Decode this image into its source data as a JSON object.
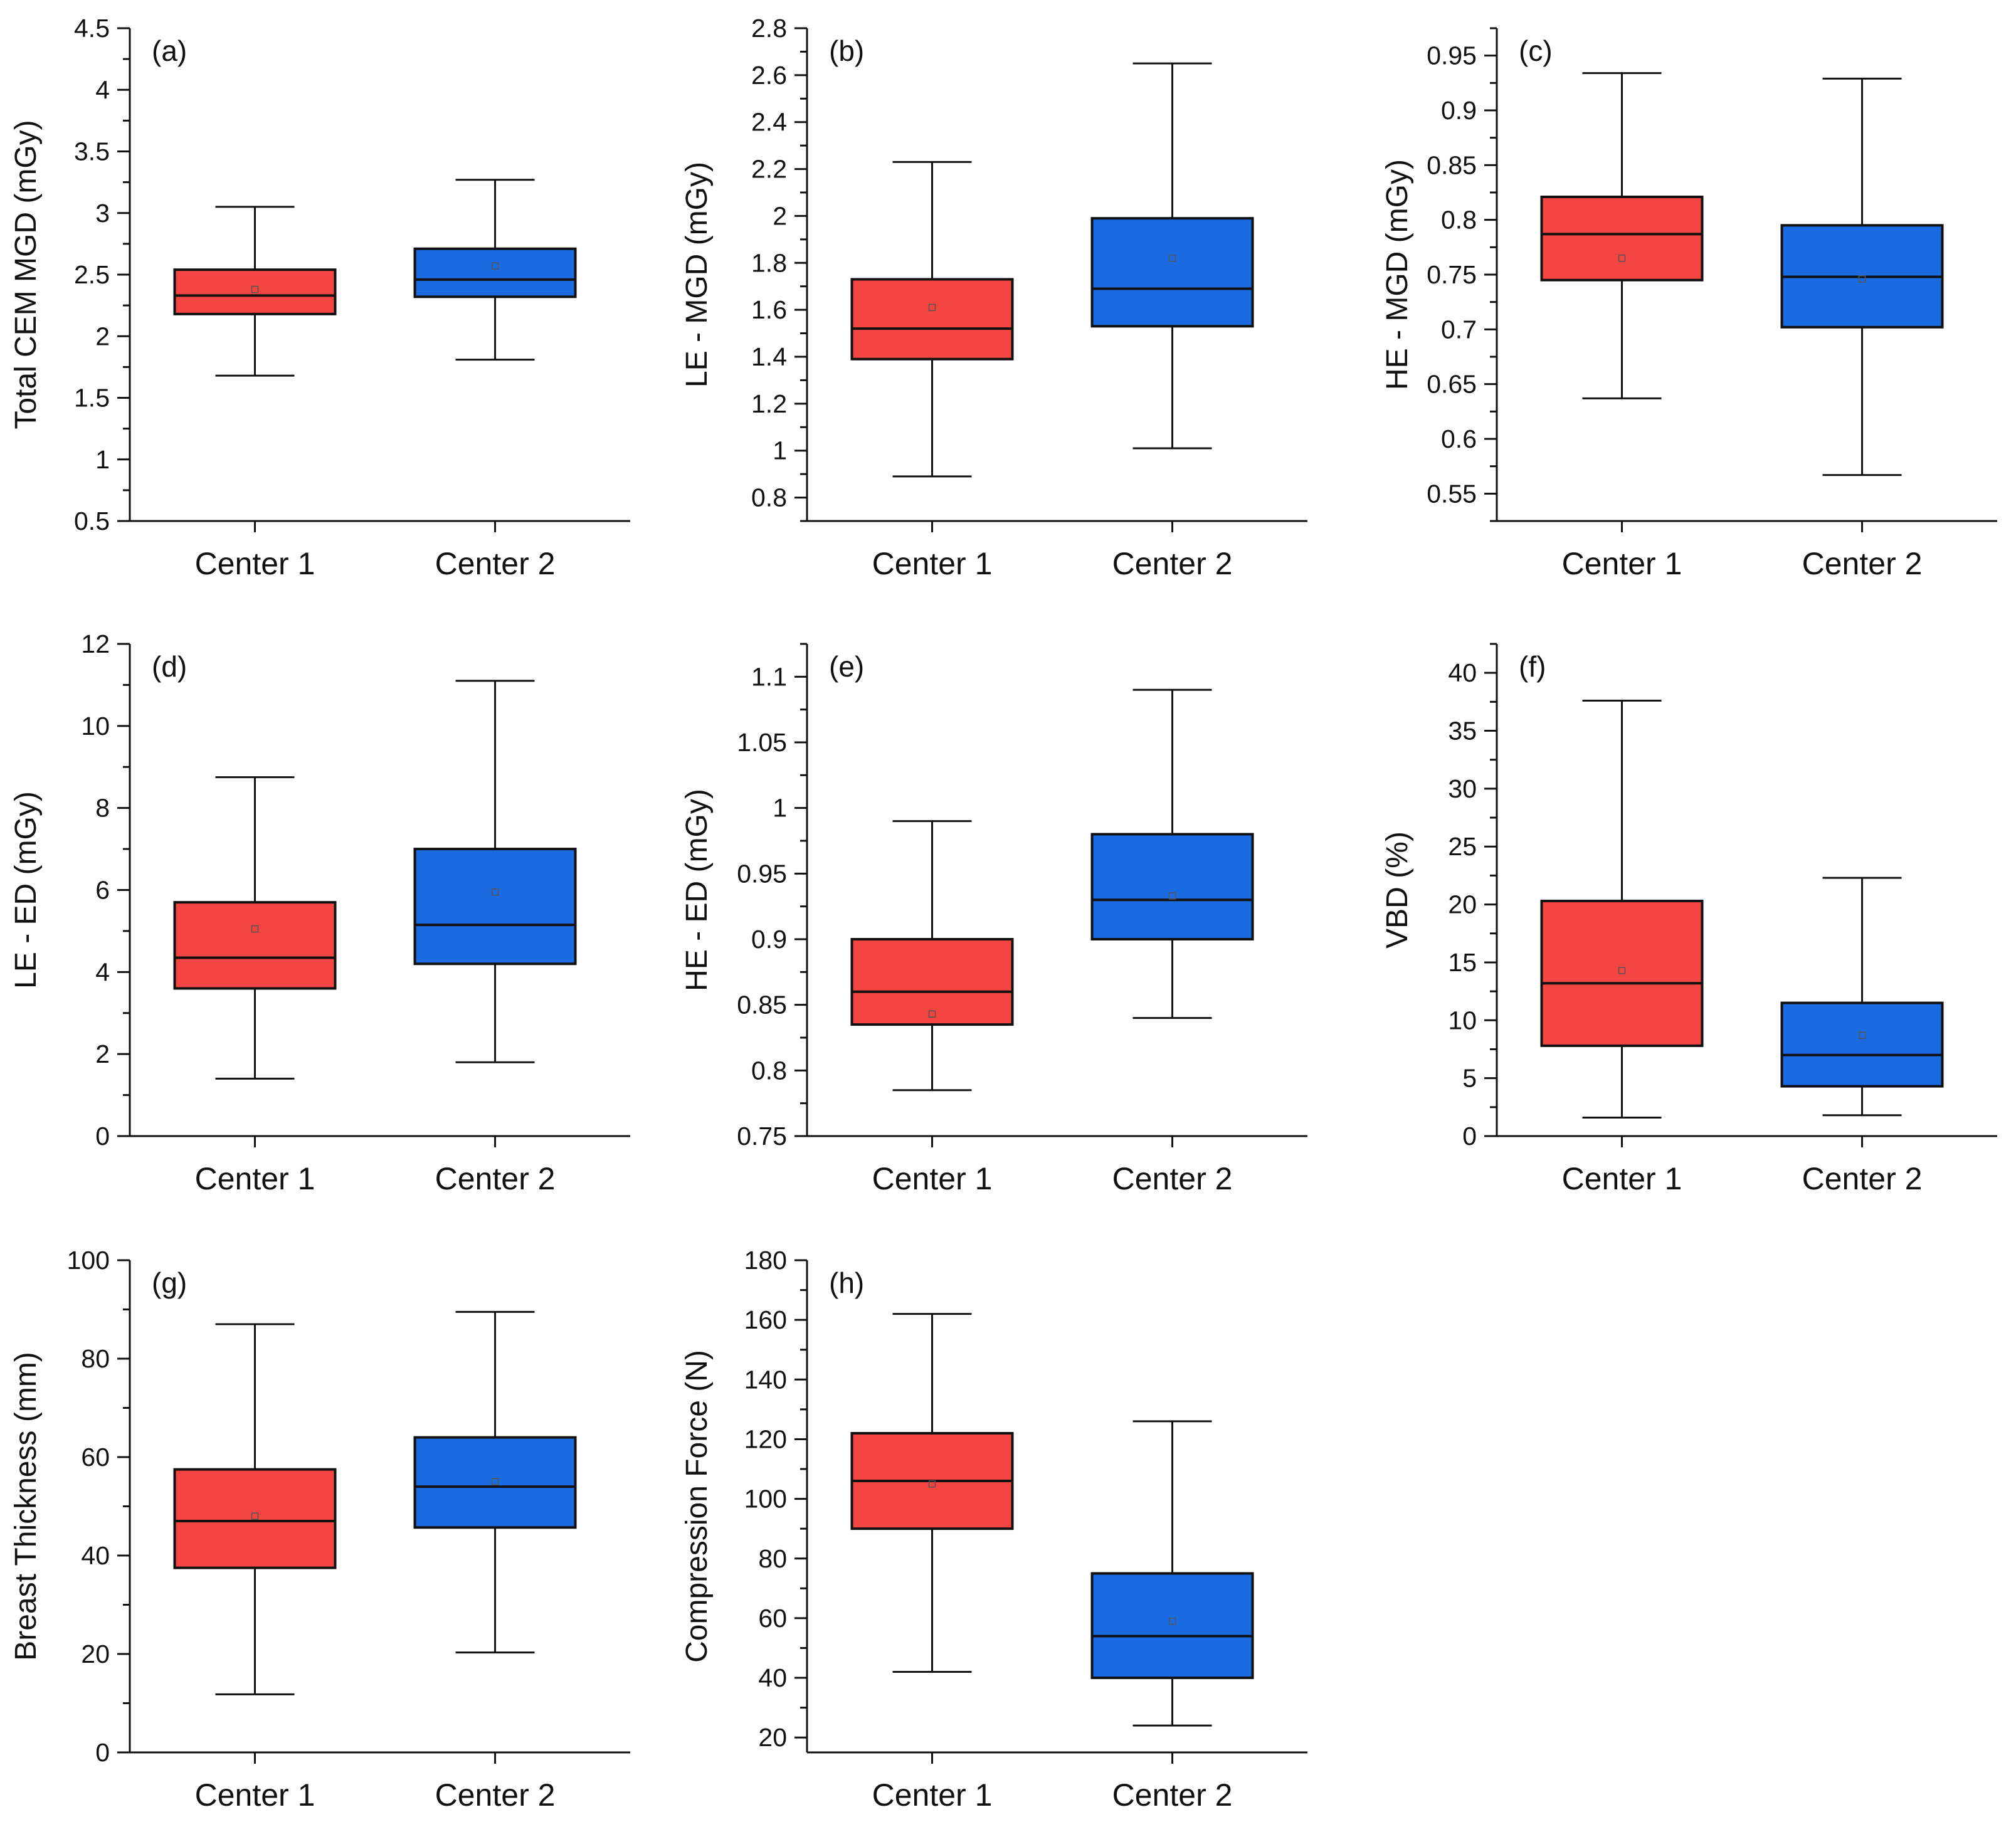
{
  "figure": {
    "colors": {
      "Center 1": "#f44542",
      "Center 2": "#1a6ae2",
      "axis": "#111111"
    }
  },
  "chart_data": [
    {
      "type": "box",
      "label": "(a)",
      "ylabel": "Total CEM MGD (mGy)",
      "ylim": [
        0.5,
        4.5
      ],
      "yticks": [
        "0.5",
        "1",
        "1.5",
        "2",
        "2.5",
        "3",
        "3.5",
        "4",
        "4.5"
      ],
      "categories": [
        "Center 1",
        "Center 2"
      ],
      "boxes": [
        {
          "name": "Center 1",
          "min": 1.68,
          "q1": 2.18,
          "median": 2.33,
          "q3": 2.54,
          "max": 3.05,
          "mean": 2.38
        },
        {
          "name": "Center 2",
          "min": 1.81,
          "q1": 2.32,
          "median": 2.46,
          "q3": 2.71,
          "max": 3.27,
          "mean": 2.57
        }
      ]
    },
    {
      "type": "box",
      "label": "(b)",
      "ylabel": "LE - MGD (mGy)",
      "ylim": [
        0.7,
        2.8
      ],
      "yticks": [
        "0.8",
        "1",
        "1.2",
        "1.4",
        "1.6",
        "1.8",
        "2",
        "2.2",
        "2.4",
        "2.6",
        "2.8"
      ],
      "categories": [
        "Center 1",
        "Center 2"
      ],
      "boxes": [
        {
          "name": "Center 1",
          "min": 0.89,
          "q1": 1.39,
          "median": 1.52,
          "q3": 1.73,
          "max": 2.23,
          "mean": 1.61
        },
        {
          "name": "Center 2",
          "min": 1.01,
          "q1": 1.53,
          "median": 1.69,
          "q3": 1.99,
          "max": 2.65,
          "mean": 1.82
        }
      ]
    },
    {
      "type": "box",
      "label": "(c)",
      "ylabel": "HE - MGD (mGy)",
      "ylim": [
        0.525,
        0.975
      ],
      "yticks": [
        "0.55",
        "0.6",
        "0.65",
        "0.7",
        "0.75",
        "0.8",
        "0.85",
        "0.9",
        "0.95"
      ],
      "categories": [
        "Center 1",
        "Center 2"
      ],
      "boxes": [
        {
          "name": "Center 1",
          "min": 0.637,
          "q1": 0.745,
          "median": 0.787,
          "q3": 0.821,
          "max": 0.934,
          "mean": 0.765
        },
        {
          "name": "Center 2",
          "min": 0.567,
          "q1": 0.702,
          "median": 0.748,
          "q3": 0.795,
          "max": 0.929,
          "mean": 0.746
        }
      ]
    },
    {
      "type": "box",
      "label": "(d)",
      "ylabel": "LE - ED (mGy)",
      "ylim": [
        0,
        12
      ],
      "yticks": [
        "0",
        "2",
        "4",
        "6",
        "8",
        "10",
        "12"
      ],
      "categories": [
        "Center 1",
        "Center 2"
      ],
      "boxes": [
        {
          "name": "Center 1",
          "min": 1.4,
          "q1": 3.6,
          "median": 4.35,
          "q3": 5.7,
          "max": 8.75,
          "mean": 5.05
        },
        {
          "name": "Center 2",
          "min": 1.8,
          "q1": 4.2,
          "median": 5.15,
          "q3": 7.0,
          "max": 11.1,
          "mean": 5.95
        }
      ]
    },
    {
      "type": "box",
      "label": "(e)",
      "ylabel": "HE - ED (mGy)",
      "ylim": [
        0.75,
        1.125
      ],
      "yticks": [
        "0.75",
        "0.8",
        "0.85",
        "0.9",
        "0.95",
        "1",
        "1.05",
        "1.1"
      ],
      "categories": [
        "Center 1",
        "Center 2"
      ],
      "boxes": [
        {
          "name": "Center 1",
          "min": 0.785,
          "q1": 0.835,
          "median": 0.86,
          "q3": 0.9,
          "max": 0.99,
          "mean": 0.843
        },
        {
          "name": "Center 2",
          "min": 0.84,
          "q1": 0.9,
          "median": 0.93,
          "q3": 0.98,
          "max": 1.09,
          "mean": 0.933
        }
      ]
    },
    {
      "type": "box",
      "label": "(f)",
      "ylabel": "VBD (%)",
      "ylim": [
        0,
        42.5
      ],
      "yticks": [
        "0",
        "5",
        "10",
        "15",
        "20",
        "25",
        "30",
        "35",
        "40"
      ],
      "categories": [
        "Center 1",
        "Center 2"
      ],
      "boxes": [
        {
          "name": "Center 1",
          "min": 1.6,
          "q1": 7.8,
          "median": 13.2,
          "q3": 20.3,
          "max": 37.6,
          "mean": 14.3
        },
        {
          "name": "Center 2",
          "min": 1.8,
          "q1": 4.3,
          "median": 7.0,
          "q3": 11.5,
          "max": 22.3,
          "mean": 8.7
        }
      ]
    },
    {
      "type": "box",
      "label": "(g)",
      "ylabel": "Breast Thickness (mm)",
      "ylim": [
        0,
        100
      ],
      "yticks": [
        "0",
        "20",
        "40",
        "60",
        "80",
        "100"
      ],
      "categories": [
        "Center 1",
        "Center 2"
      ],
      "boxes": [
        {
          "name": "Center 1",
          "min": 11.8,
          "q1": 37.5,
          "median": 47.0,
          "q3": 57.5,
          "max": 87.0,
          "mean": 48.0
        },
        {
          "name": "Center 2",
          "min": 20.3,
          "q1": 45.7,
          "median": 54.0,
          "q3": 64.0,
          "max": 89.5,
          "mean": 55.0
        }
      ]
    },
    {
      "type": "box",
      "label": "(h)",
      "ylabel": "Compression Force (N)",
      "ylim": [
        15,
        180
      ],
      "yticks": [
        "20",
        "40",
        "60",
        "80",
        "100",
        "120",
        "140",
        "160",
        "180"
      ],
      "categories": [
        "Center 1",
        "Center 2"
      ],
      "boxes": [
        {
          "name": "Center 1",
          "min": 42,
          "q1": 90,
          "median": 106,
          "q3": 122,
          "max": 162,
          "mean": 105
        },
        {
          "name": "Center 2",
          "min": 24,
          "q1": 40,
          "median": 54,
          "q3": 75,
          "max": 126,
          "mean": 59
        }
      ]
    }
  ]
}
